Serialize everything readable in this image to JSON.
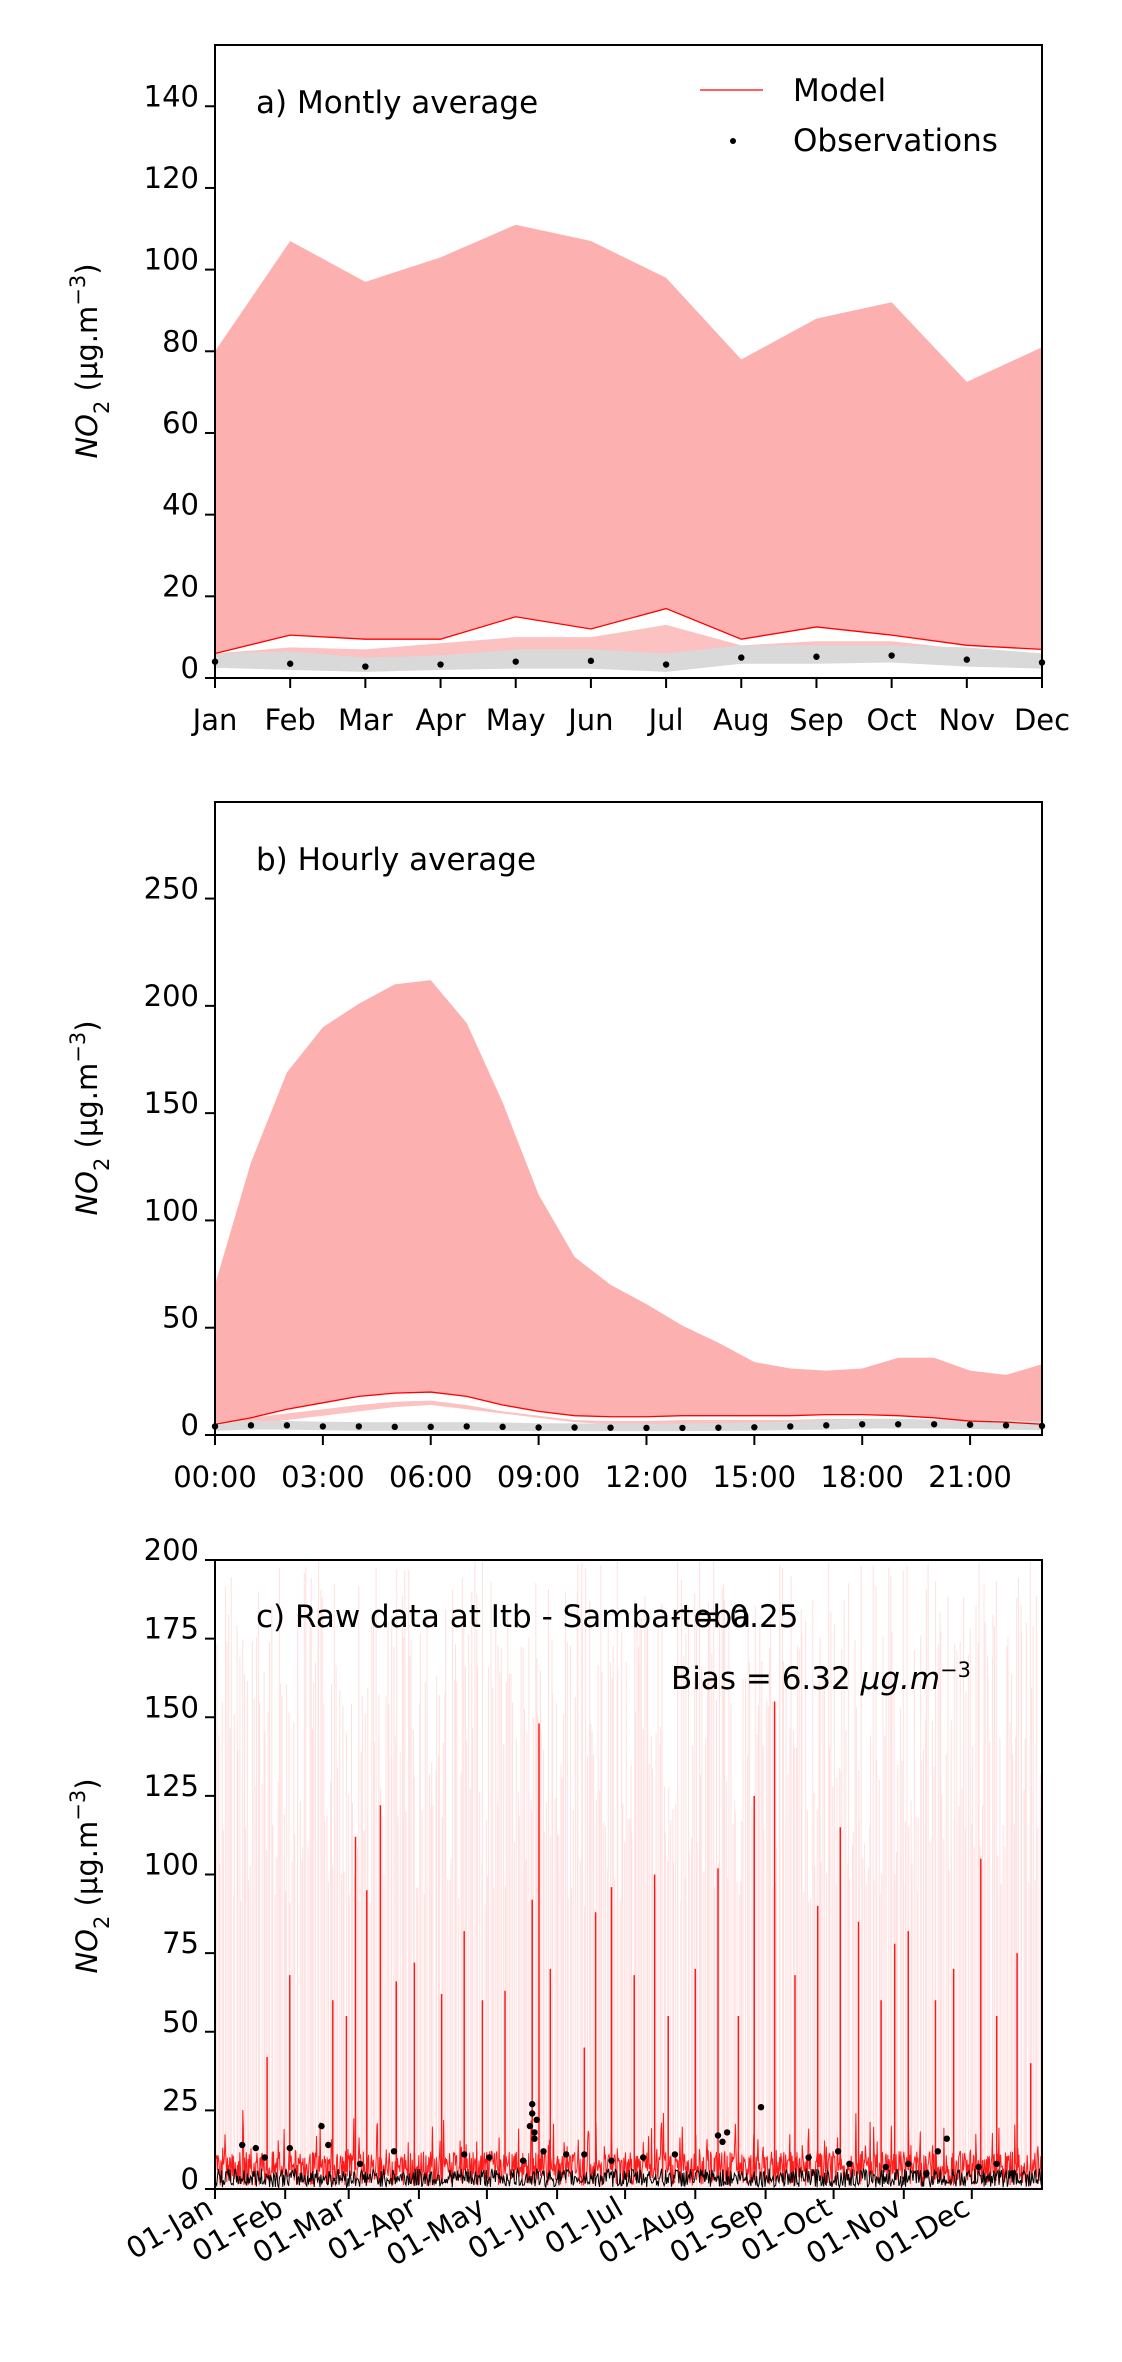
{
  "chart_data": [
    {
      "type": "area",
      "title": "a) Montly average",
      "xlabel": "",
      "ylabel": "NO2 (µg.m-3)",
      "ylabel_main": "NO",
      "ylabel_sub": "2",
      "ylabel_unit": " (µg.m",
      "ylabel_exp": "−3",
      "ylabel_close": ")",
      "categories": [
        "Jan",
        "Feb",
        "Mar",
        "Apr",
        "May",
        "Jun",
        "Jul",
        "Aug",
        "Sep",
        "Oct",
        "Nov",
        "Dec"
      ],
      "ylim": [
        0,
        155
      ],
      "yticks": [
        0,
        20,
        40,
        60,
        80,
        100,
        120,
        140
      ],
      "legend": {
        "position": "top-right",
        "entries": [
          "Model",
          "Observations"
        ]
      },
      "series": [
        {
          "name": "Model",
          "values": [
            6,
            10.5,
            9.5,
            9.5,
            15,
            12,
            17,
            9.5,
            12.5,
            10.5,
            8,
            7
          ]
        },
        {
          "values": [
            6,
            10.5,
            9.5,
            9.5,
            15,
            12,
            17,
            9.5,
            12.5,
            10.5,
            8,
            7
          ]
        },
        {
          "values": [
            80,
            107,
            97,
            103,
            111,
            107,
            98,
            78,
            88,
            92,
            72.5,
            81
          ]
        },
        {
          "values": [
            5,
            5.5,
            4.5,
            5,
            6,
            5.5,
            5,
            4.5,
            5,
            5.5,
            4.5,
            4.5
          ]
        },
        {
          "values": [
            6,
            7.5,
            7,
            8.5,
            10,
            10,
            13,
            8,
            9,
            9,
            7,
            6
          ]
        },
        {
          "name": "Observations",
          "values": [
            4,
            3.5,
            2.8,
            3.3,
            4,
            4.2,
            3.3,
            5,
            5.2,
            5.5,
            4.5,
            3.8
          ]
        },
        {
          "values": [
            2.5,
            2,
            1.5,
            2,
            2.3,
            2.3,
            1.5,
            3.5,
            3.5,
            3.8,
            2.8,
            2.3
          ]
        },
        {
          "values": [
            6,
            6.5,
            5,
            5.5,
            7,
            7,
            6,
            8,
            8,
            8,
            7.5,
            6
          ]
        }
      ]
    },
    {
      "type": "area",
      "title": "b) Hourly average",
      "xlabel": "",
      "ylabel": "NO2 (µg.m-3)",
      "ylabel_main": "NO",
      "ylabel_sub": "2",
      "ylabel_unit": " (µg.m",
      "ylabel_exp": "−3",
      "ylabel_close": ")",
      "x": [
        0,
        1,
        2,
        3,
        4,
        5,
        6,
        7,
        8,
        9,
        10,
        11,
        12,
        13,
        14,
        15,
        16,
        17,
        18,
        19,
        20,
        21,
        22,
        23
      ],
      "xlim": [
        0,
        23
      ],
      "xticks": [
        0,
        3,
        6,
        9,
        12,
        15,
        18,
        21
      ],
      "xtick_labels": [
        "00:00",
        "03:00",
        "06:00",
        "09:00",
        "12:00",
        "15:00",
        "18:00",
        "21:00"
      ],
      "ylim": [
        0,
        295
      ],
      "yticks": [
        0,
        50,
        100,
        150,
        200,
        250
      ],
      "series": [
        {
          "values": [
            5,
            8,
            12,
            15,
            18,
            19.5,
            20,
            18,
            14,
            11,
            9,
            8.5,
            8.5,
            9,
            9,
            9,
            9,
            9.5,
            9.5,
            9,
            8,
            6.5,
            6,
            5
          ]
        },
        {
          "values": [
            70,
            127,
            169,
            190,
            201,
            210,
            212,
            192,
            155,
            112,
            83,
            70,
            61,
            51,
            43,
            34,
            31,
            30,
            31,
            36,
            36,
            30,
            28,
            33
          ]
        },
        {
          "values": [
            3,
            5,
            7,
            9,
            11,
            13,
            14,
            12,
            10,
            8,
            6,
            5,
            5,
            5,
            5,
            5,
            5,
            5.5,
            6,
            6,
            5.5,
            5,
            4.5,
            4
          ]
        },
        {
          "values": [
            5,
            8,
            10,
            12,
            14,
            15.5,
            16,
            14,
            11,
            9,
            7,
            6.5,
            6.5,
            7,
            7,
            7,
            7,
            7.5,
            7.5,
            7.5,
            7,
            6,
            5.5,
            4.5
          ]
        },
        {
          "values": [
            4,
            4.5,
            4.5,
            4,
            4,
            3.8,
            3.8,
            4,
            3.8,
            3.5,
            3.5,
            3.4,
            3.3,
            3.3,
            3.4,
            3.6,
            4,
            4.5,
            5,
            5,
            5,
            4.8,
            4.5,
            4.2
          ]
        },
        {
          "values": [
            2,
            2.5,
            2.5,
            2.2,
            2,
            2,
            2,
            2,
            2,
            1.8,
            1.8,
            1.8,
            1.8,
            1.8,
            1.9,
            2,
            2.3,
            2.5,
            3,
            3,
            3,
            2.8,
            2.5,
            2.2
          ]
        },
        {
          "values": [
            6,
            6.5,
            6.5,
            6.2,
            6,
            6,
            6,
            6,
            5.8,
            5.5,
            5.4,
            5.3,
            5.2,
            5.3,
            5.5,
            5.8,
            6.3,
            7,
            7.5,
            7.5,
            7.2,
            7,
            6.8,
            6.3
          ]
        }
      ]
    },
    {
      "type": "line",
      "title": "c) Raw data at Itb - Samba-toba",
      "r_label": "r = 0.25",
      "bias_prefix": "Bias = 6.32 ",
      "bias_unit": "µg.m",
      "bias_exp": "−3",
      "xlabel": "",
      "ylabel": "NO2 (µg.m-3)",
      "ylabel_main": "NO",
      "ylabel_sub": "2",
      "ylabel_unit": " (µg.m",
      "ylabel_exp": "−3",
      "ylabel_close": ")",
      "xlim": [
        0,
        365
      ],
      "xticks": [
        0,
        31,
        59,
        90,
        120,
        151,
        181,
        212,
        243,
        273,
        304,
        334
      ],
      "xtick_labels": [
        "01-Jan",
        "01-Feb",
        "01-Mar",
        "01-Apr",
        "01-May",
        "01-Jun",
        "01-Jul",
        "01-Aug",
        "01-Sep",
        "01-Oct",
        "01-Nov",
        "01-Dec"
      ],
      "ylim": [
        0,
        200
      ],
      "yticks": [
        0,
        25,
        50,
        75,
        100,
        125,
        150,
        175,
        200
      ],
      "model_peaks": [
        [
          23,
          42
        ],
        [
          33,
          68
        ],
        [
          52,
          60
        ],
        [
          58,
          55
        ],
        [
          62,
          112
        ],
        [
          67,
          95
        ],
        [
          73,
          122
        ],
        [
          80,
          66
        ],
        [
          88,
          72
        ],
        [
          100,
          62
        ],
        [
          110,
          82
        ],
        [
          118,
          60
        ],
        [
          128,
          63
        ],
        [
          140,
          92
        ],
        [
          143,
          148
        ],
        [
          148,
          70
        ],
        [
          163,
          45
        ],
        [
          168,
          88
        ],
        [
          175,
          96
        ],
        [
          185,
          68
        ],
        [
          194,
          100
        ],
        [
          200,
          55
        ],
        [
          212,
          70
        ],
        [
          222,
          102
        ],
        [
          231,
          55
        ],
        [
          238,
          125
        ],
        [
          247,
          155
        ],
        [
          256,
          68
        ],
        [
          266,
          90
        ],
        [
          276,
          115
        ],
        [
          284,
          85
        ],
        [
          294,
          60
        ],
        [
          300,
          78
        ],
        [
          306,
          82
        ],
        [
          318,
          60
        ],
        [
          326,
          70
        ],
        [
          338,
          105
        ],
        [
          345,
          55
        ],
        [
          354,
          75
        ],
        [
          360,
          40
        ]
      ],
      "obs_points": [
        [
          12,
          14
        ],
        [
          18,
          13
        ],
        [
          22,
          10
        ],
        [
          33,
          13
        ],
        [
          47,
          20
        ],
        [
          50,
          14
        ],
        [
          64,
          8
        ],
        [
          79,
          12
        ],
        [
          110,
          11
        ],
        [
          121,
          10
        ],
        [
          136,
          9
        ],
        [
          139,
          20
        ],
        [
          140,
          24
        ],
        [
          140,
          27
        ],
        [
          141,
          16
        ],
        [
          141,
          18
        ],
        [
          142,
          22
        ],
        [
          145,
          12
        ],
        [
          155,
          11
        ],
        [
          163,
          11
        ],
        [
          175,
          9
        ],
        [
          189,
          10
        ],
        [
          203,
          11
        ],
        [
          222,
          17
        ],
        [
          224,
          15
        ],
        [
          226,
          18
        ],
        [
          241,
          26
        ],
        [
          262,
          10
        ],
        [
          275,
          12
        ],
        [
          280,
          8
        ],
        [
          296,
          7
        ],
        [
          306,
          8
        ],
        [
          314,
          5
        ],
        [
          319,
          12
        ],
        [
          323,
          16
        ],
        [
          337,
          7
        ],
        [
          345,
          8
        ],
        [
          352,
          5
        ]
      ]
    }
  ]
}
